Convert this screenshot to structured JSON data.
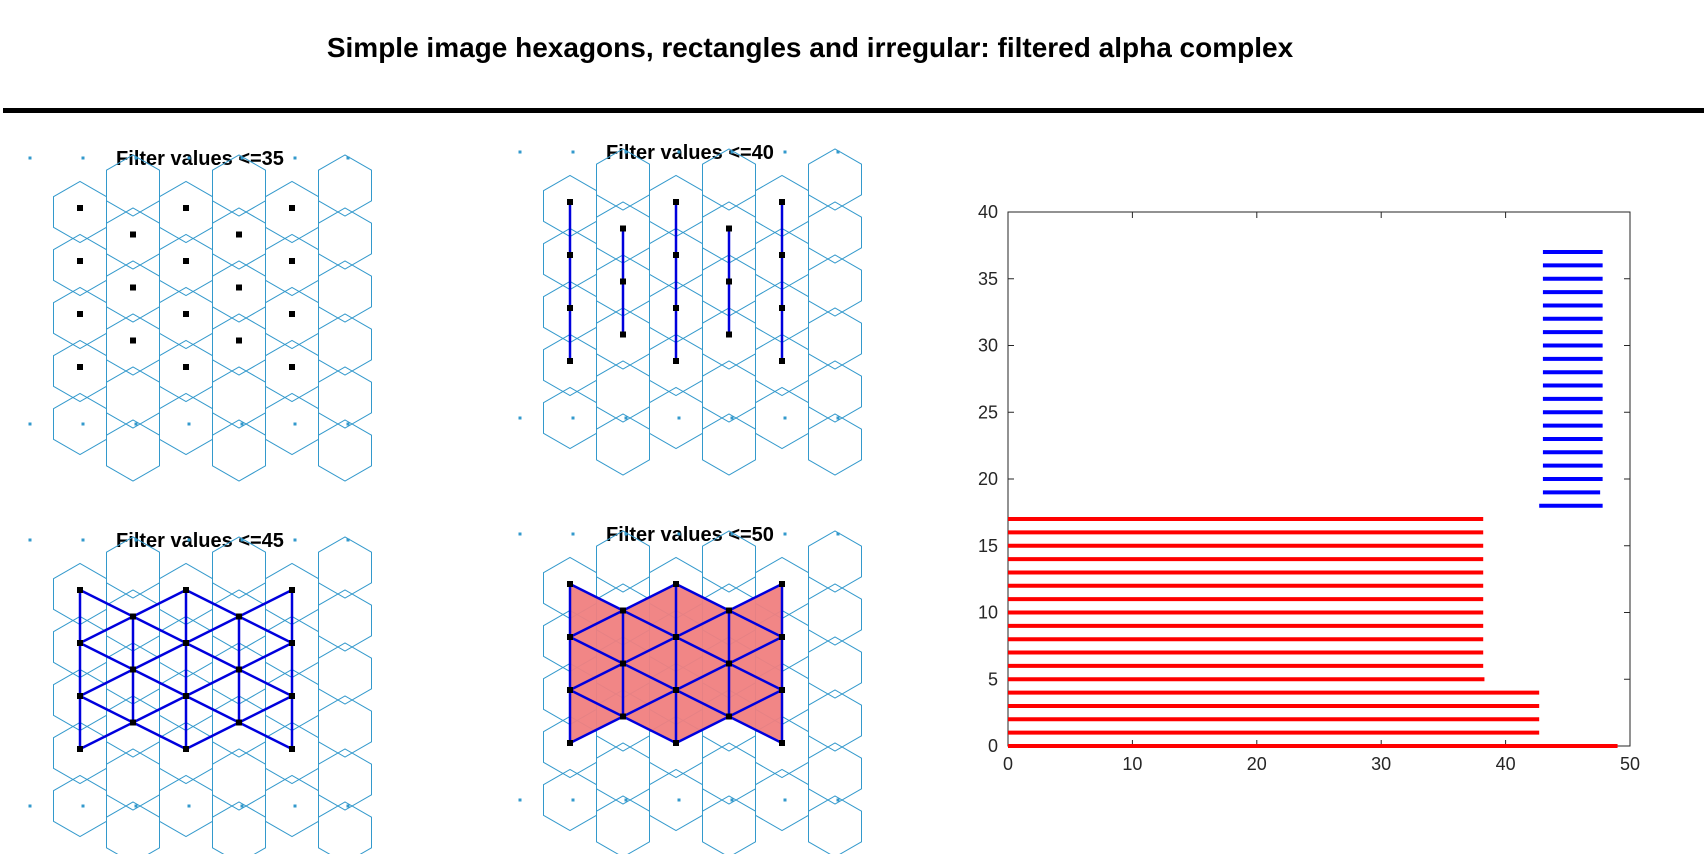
{
  "figure": {
    "title": "Simple image hexagons, rectangles and irregular: filtered alpha complex"
  },
  "colors": {
    "voronoi": "#3399cc",
    "points": "#000000",
    "edges": "#0000dd",
    "filled": "#f08080",
    "h0_bars": "#ff0000",
    "h1_bars": "#0000ff",
    "axis": "#262626"
  },
  "panels": [
    {
      "title": "Filter values <=35",
      "stage": 0
    },
    {
      "title": "Filter values <=40",
      "stage": 1
    },
    {
      "title": "Filter values <=45",
      "stage": 2
    },
    {
      "title": "Filter values <=50",
      "stage": 3
    }
  ],
  "chart_data": {
    "type": "barcode",
    "title": "",
    "xlabel": "",
    "ylabel": "",
    "xlim": [
      0,
      50
    ],
    "ylim": [
      0,
      40
    ],
    "xticks": [
      "0",
      "10",
      "20",
      "30",
      "40",
      "50"
    ],
    "yticks": [
      "0",
      "5",
      "10",
      "15",
      "20",
      "25",
      "30",
      "35",
      "40"
    ],
    "grid": false,
    "series": [
      {
        "dimension": 0,
        "color": "#ff0000",
        "bars": [
          {
            "y": 0,
            "birth": 0,
            "death": 49
          },
          {
            "y": 1,
            "birth": 0,
            "death": 42.7
          },
          {
            "y": 2,
            "birth": 0,
            "death": 42.7
          },
          {
            "y": 3,
            "birth": 0,
            "death": 42.7
          },
          {
            "y": 4,
            "birth": 0,
            "death": 42.7
          },
          {
            "y": 5,
            "birth": 0,
            "death": 38.3
          },
          {
            "y": 6,
            "birth": 0,
            "death": 38.2
          },
          {
            "y": 7,
            "birth": 0,
            "death": 38.2
          },
          {
            "y": 8,
            "birth": 0,
            "death": 38.2
          },
          {
            "y": 9,
            "birth": 0,
            "death": 38.2
          },
          {
            "y": 10,
            "birth": 0,
            "death": 38.2
          },
          {
            "y": 11,
            "birth": 0,
            "death": 38.2
          },
          {
            "y": 12,
            "birth": 0,
            "death": 38.2
          },
          {
            "y": 13,
            "birth": 0,
            "death": 38.2
          },
          {
            "y": 14,
            "birth": 0,
            "death": 38.2
          },
          {
            "y": 15,
            "birth": 0,
            "death": 38.2
          },
          {
            "y": 16,
            "birth": 0,
            "death": 38.2
          },
          {
            "y": 17,
            "birth": 0,
            "death": 38.2
          }
        ]
      },
      {
        "dimension": 1,
        "color": "#0000ff",
        "bars": [
          {
            "y": 18,
            "birth": 42.7,
            "death": 47.8
          },
          {
            "y": 19,
            "birth": 43.0,
            "death": 47.6
          },
          {
            "y": 20,
            "birth": 43.0,
            "death": 47.8
          },
          {
            "y": 21,
            "birth": 43.0,
            "death": 47.8
          },
          {
            "y": 22,
            "birth": 43.0,
            "death": 47.8
          },
          {
            "y": 23,
            "birth": 43.0,
            "death": 47.8
          },
          {
            "y": 24,
            "birth": 43.0,
            "death": 47.8
          },
          {
            "y": 25,
            "birth": 43.0,
            "death": 47.8
          },
          {
            "y": 26,
            "birth": 43.0,
            "death": 47.8
          },
          {
            "y": 27,
            "birth": 43.0,
            "death": 47.8
          },
          {
            "y": 28,
            "birth": 43.0,
            "death": 47.8
          },
          {
            "y": 29,
            "birth": 43.0,
            "death": 47.8
          },
          {
            "y": 30,
            "birth": 43.0,
            "death": 47.8
          },
          {
            "y": 31,
            "birth": 43.0,
            "death": 47.8
          },
          {
            "y": 32,
            "birth": 43.0,
            "death": 47.8
          },
          {
            "y": 33,
            "birth": 43.0,
            "death": 47.8
          },
          {
            "y": 34,
            "birth": 43.0,
            "death": 47.8
          },
          {
            "y": 35,
            "birth": 43.0,
            "death": 47.8
          },
          {
            "y": 36,
            "birth": 43.0,
            "death": 47.8
          },
          {
            "y": 37,
            "birth": 43.0,
            "death": 47.8
          }
        ]
      }
    ]
  }
}
